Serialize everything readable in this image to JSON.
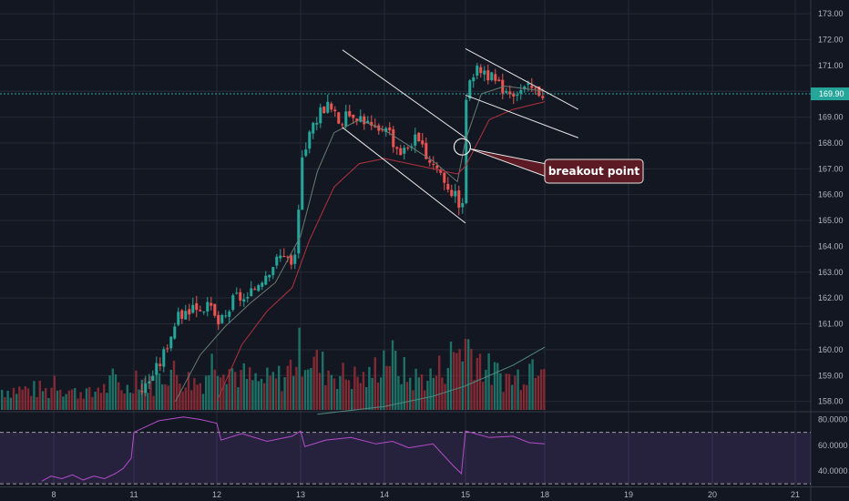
{
  "chart_data": {
    "type": "candlestick",
    "x_ticks": [
      "8",
      "11",
      "12",
      "13",
      "14",
      "15",
      "18",
      "19",
      "20",
      "21"
    ],
    "price_axis": {
      "ticks": [
        "158.00",
        "159.00",
        "160.00",
        "161.00",
        "162.00",
        "163.00",
        "164.00",
        "165.00",
        "166.00",
        "167.00",
        "168.00",
        "169.00",
        "170.00",
        "171.00",
        "172.00",
        "173.00"
      ],
      "range": [
        157.6,
        173.25
      ]
    },
    "last_price": {
      "value": 169.9,
      "label": "169.90"
    },
    "rsi": {
      "ticks": [
        "40.0000",
        "60.0000",
        "80.0000"
      ],
      "range": [
        28,
        86
      ],
      "upper_band": 70,
      "lower_band": 30
    },
    "annotation": {
      "text": "breakout point",
      "price": 167.85
    },
    "trend_channels": [
      {
        "upper": [
          [
            13.5,
            171.6
          ],
          [
            15.0,
            168.2
          ]
        ],
        "lower": [
          [
            13.5,
            168.6
          ],
          [
            15.0,
            164.9
          ]
        ]
      },
      {
        "upper": [
          [
            15.0,
            171.65
          ],
          [
            16.4,
            169.3
          ]
        ],
        "lower": [
          [
            15.0,
            169.85
          ],
          [
            16.4,
            168.2
          ]
        ]
      }
    ],
    "price_series": [
      [
        7.6,
        157.6
      ],
      [
        7.9,
        157.9
      ],
      [
        8.2,
        158.1
      ],
      [
        8.5,
        158.3
      ],
      [
        8.8,
        158.2
      ],
      [
        9.1,
        158.5
      ],
      [
        9.4,
        158.3
      ],
      [
        9.7,
        158.6
      ],
      [
        10.0,
        158.2
      ],
      [
        10.3,
        158.5
      ],
      [
        10.6,
        158.0
      ],
      [
        10.9,
        158.0
      ],
      [
        11.1,
        158.5
      ],
      [
        11.3,
        159.5
      ],
      [
        11.5,
        161.2
      ],
      [
        11.7,
        161.7
      ],
      [
        11.9,
        161.6
      ],
      [
        12.0,
        161.0
      ],
      [
        12.1,
        161.3
      ],
      [
        12.2,
        162.1
      ],
      [
        12.35,
        161.9
      ],
      [
        12.5,
        162.7
      ],
      [
        12.65,
        163.3
      ],
      [
        12.8,
        163.8
      ],
      [
        12.9,
        163.0
      ],
      [
        13.0,
        167.2
      ],
      [
        13.1,
        168.3
      ],
      [
        13.2,
        169.2
      ],
      [
        13.3,
        169.5
      ],
      [
        13.45,
        168.8
      ],
      [
        13.6,
        169.2
      ],
      [
        13.75,
        168.9
      ],
      [
        13.9,
        168.3
      ],
      [
        14.0,
        168.8
      ],
      [
        14.1,
        168.0
      ],
      [
        14.2,
        167.6
      ],
      [
        14.35,
        168.2
      ],
      [
        14.5,
        167.5
      ],
      [
        14.65,
        167.0
      ],
      [
        14.8,
        166.2
      ],
      [
        14.95,
        165.5
      ],
      [
        15.0,
        170.6
      ],
      [
        15.2,
        170.9
      ],
      [
        15.4,
        170.2
      ],
      [
        15.6,
        170.0
      ],
      [
        15.8,
        170.1
      ],
      [
        16.0,
        169.9
      ]
    ],
    "moving_averages": [
      {
        "name": "",
        "color": "#6c7a72",
        "points": [
          [
            11.5,
            158.0
          ],
          [
            11.8,
            159.8
          ],
          [
            12.1,
            160.9
          ],
          [
            12.4,
            161.8
          ],
          [
            12.7,
            162.6
          ],
          [
            13.0,
            164.4
          ],
          [
            13.2,
            166.9
          ],
          [
            13.4,
            168.4
          ],
          [
            13.7,
            168.9
          ],
          [
            14.0,
            168.5
          ],
          [
            14.3,
            167.9
          ],
          [
            14.6,
            167.3
          ],
          [
            14.9,
            166.5
          ],
          [
            15.0,
            168.1
          ],
          [
            15.2,
            169.9
          ],
          [
            15.5,
            170.2
          ],
          [
            16.0,
            170.0
          ]
        ]
      },
      {
        "name": "",
        "color": "#b1323c",
        "points": [
          [
            12.0,
            158.0
          ],
          [
            12.3,
            160.2
          ],
          [
            12.6,
            161.5
          ],
          [
            12.9,
            162.4
          ],
          [
            13.1,
            164.2
          ],
          [
            13.4,
            166.3
          ],
          [
            13.7,
            167.2
          ],
          [
            14.0,
            167.4
          ],
          [
            14.3,
            167.2
          ],
          [
            14.6,
            167.0
          ],
          [
            14.9,
            166.8
          ],
          [
            15.0,
            167.1
          ],
          [
            15.3,
            168.9
          ],
          [
            15.6,
            169.3
          ],
          [
            16.0,
            169.6
          ]
        ]
      }
    ],
    "volume_ma": [
      [
        13.2,
        157.5
      ],
      [
        14.0,
        157.8
      ],
      [
        14.6,
        158.2
      ],
      [
        15.0,
        158.6
      ],
      [
        15.6,
        159.4
      ],
      [
        16.0,
        160.1
      ]
    ],
    "volume_envelope": [
      [
        7.55,
        0.3
      ],
      [
        7.8,
        0.25
      ],
      [
        8.0,
        0.5
      ],
      [
        8.2,
        0.35
      ],
      [
        8.5,
        0.3
      ],
      [
        8.8,
        0.25
      ],
      [
        9.1,
        0.3
      ],
      [
        9.4,
        0.2
      ],
      [
        9.6,
        0.35
      ],
      [
        9.9,
        0.3
      ],
      [
        10.2,
        0.45
      ],
      [
        10.5,
        0.35
      ],
      [
        10.8,
        0.3
      ],
      [
        11.0,
        0.55
      ],
      [
        11.2,
        0.35
      ],
      [
        11.4,
        0.6
      ],
      [
        11.6,
        0.45
      ],
      [
        11.8,
        0.4
      ],
      [
        12.0,
        0.85
      ],
      [
        12.2,
        0.55
      ],
      [
        12.5,
        0.4
      ],
      [
        12.8,
        0.5
      ],
      [
        13.0,
        0.9
      ],
      [
        13.2,
        0.65
      ],
      [
        13.5,
        0.5
      ],
      [
        13.8,
        0.45
      ],
      [
        14.0,
        0.85
      ],
      [
        14.3,
        0.45
      ],
      [
        14.6,
        0.5
      ],
      [
        14.9,
        0.9
      ],
      [
        15.0,
        1.0
      ],
      [
        15.3,
        0.55
      ],
      [
        15.6,
        0.45
      ],
      [
        15.85,
        0.75
      ],
      [
        16.0,
        1.0
      ]
    ],
    "rsi_series": [
      [
        7.55,
        32
      ],
      [
        7.9,
        36
      ],
      [
        8.3,
        34
      ],
      [
        8.7,
        37
      ],
      [
        9.1,
        33
      ],
      [
        9.5,
        36
      ],
      [
        9.9,
        34
      ],
      [
        10.3,
        38
      ],
      [
        10.6,
        42
      ],
      [
        10.9,
        50
      ],
      [
        11.0,
        70
      ],
      [
        11.3,
        79
      ],
      [
        11.6,
        82
      ],
      [
        11.8,
        80
      ],
      [
        12.0,
        77
      ],
      [
        12.05,
        64
      ],
      [
        12.3,
        69
      ],
      [
        12.6,
        63
      ],
      [
        12.9,
        67
      ],
      [
        13.0,
        71
      ],
      [
        13.05,
        59
      ],
      [
        13.3,
        64
      ],
      [
        13.6,
        66
      ],
      [
        13.9,
        61
      ],
      [
        14.1,
        63
      ],
      [
        14.3,
        58
      ],
      [
        14.6,
        61
      ],
      [
        14.85,
        44
      ],
      [
        14.95,
        38
      ],
      [
        15.0,
        71
      ],
      [
        15.3,
        66
      ],
      [
        15.6,
        67
      ],
      [
        15.8,
        62
      ],
      [
        16.0,
        61
      ]
    ]
  }
}
